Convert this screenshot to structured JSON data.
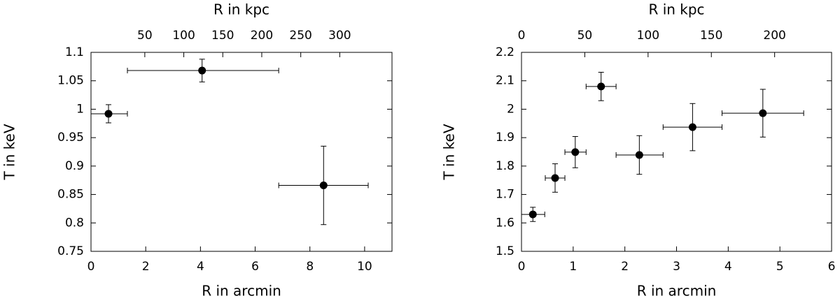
{
  "chart_data": [
    {
      "type": "scatter",
      "xlabel": "R in arcmin",
      "x2label": "R in kpc",
      "ylabel": "T in keV",
      "x": [
        0.64,
        4.06,
        8.5
      ],
      "y": [
        0.992,
        1.068,
        0.866
      ],
      "xerr_minus": [
        0.64,
        2.73,
        1.64
      ],
      "xerr_plus": [
        0.69,
        2.8,
        1.63
      ],
      "yerr": [
        0.016,
        0.02,
        0.069
      ],
      "color": "#000000",
      "xlim": [
        0,
        11
      ],
      "xticks": [
        0,
        2,
        4,
        6,
        8,
        10
      ],
      "x2lim": [
        -19,
        367
      ],
      "x2ticks": [
        50,
        100,
        150,
        200,
        250,
        300
      ],
      "ylim": [
        0.75,
        1.1
      ],
      "yticks": [
        0.75,
        0.8,
        0.85,
        0.9,
        0.95,
        1,
        1.05,
        1.1
      ]
    },
    {
      "type": "scatter",
      "xlabel": "R in arcmin",
      "x2label": "R in kpc",
      "ylabel": "T in keV",
      "x": [
        0.22,
        0.65,
        1.04,
        1.54,
        2.28,
        3.31,
        4.67
      ],
      "y": [
        1.63,
        1.758,
        1.849,
        2.08,
        1.839,
        1.937,
        1.986
      ],
      "xerr_minus": [
        0.22,
        0.19,
        0.2,
        0.29,
        0.45,
        0.57,
        0.79
      ],
      "xerr_plus": [
        0.23,
        0.19,
        0.21,
        0.29,
        0.46,
        0.57,
        0.79
      ],
      "yerr": [
        0.025,
        0.05,
        0.055,
        0.05,
        0.068,
        0.083,
        0.084
      ],
      "color": "#000000",
      "xlim": [
        0,
        6
      ],
      "xticks": [
        0,
        1,
        2,
        3,
        4,
        5,
        6
      ],
      "x2lim": [
        0,
        245
      ],
      "x2ticks": [
        0,
        50,
        100,
        150,
        200
      ],
      "ylim": [
        1.5,
        2.2
      ],
      "yticks": [
        1.5,
        1.6,
        1.7,
        1.8,
        1.9,
        2,
        2.1,
        2.2
      ]
    }
  ]
}
